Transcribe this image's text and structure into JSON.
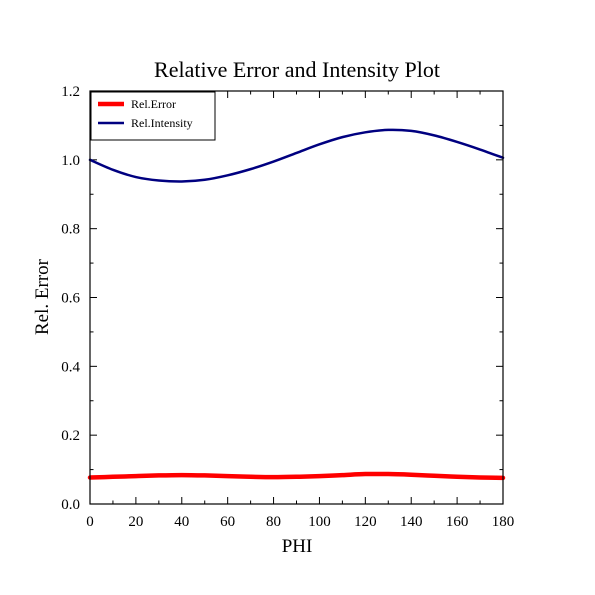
{
  "chart_data": {
    "type": "line",
    "title": "Relative Error and Intensity Plot",
    "xlabel": "PHI",
    "ylabel": "Rel. Error",
    "xlim": [
      0,
      180
    ],
    "ylim": [
      0,
      1.2
    ],
    "xticks": [
      0,
      20,
      40,
      60,
      80,
      100,
      120,
      140,
      160,
      180
    ],
    "yticks": [
      0.0,
      0.2,
      0.4,
      0.6,
      0.8,
      1.0,
      1.2
    ],
    "xtick_labels": [
      "0",
      "20",
      "40",
      "60",
      "80",
      "100",
      "120",
      "140",
      "160",
      "180"
    ],
    "ytick_labels": [
      "0.0",
      "0.2",
      "0.4",
      "0.6",
      "0.8",
      "1.0",
      "1.2"
    ],
    "grid": false,
    "legend_position": "top-left",
    "x": [
      0,
      10,
      20,
      30,
      40,
      50,
      60,
      70,
      80,
      90,
      100,
      110,
      120,
      130,
      140,
      150,
      160,
      170,
      180
    ],
    "series": [
      {
        "name": "Rel.Error",
        "color": "#ff0000",
        "values": [
          0.077,
          0.079,
          0.081,
          0.083,
          0.084,
          0.083,
          0.081,
          0.079,
          0.078,
          0.079,
          0.081,
          0.084,
          0.087,
          0.087,
          0.085,
          0.082,
          0.079,
          0.077,
          0.076
        ]
      },
      {
        "name": "Rel.Intensity",
        "color": "#000080",
        "values": [
          1.0,
          0.971,
          0.95,
          0.94,
          0.937,
          0.942,
          0.955,
          0.973,
          0.995,
          1.02,
          1.045,
          1.066,
          1.08,
          1.087,
          1.084,
          1.071,
          1.052,
          1.03,
          1.006
        ]
      }
    ]
  }
}
